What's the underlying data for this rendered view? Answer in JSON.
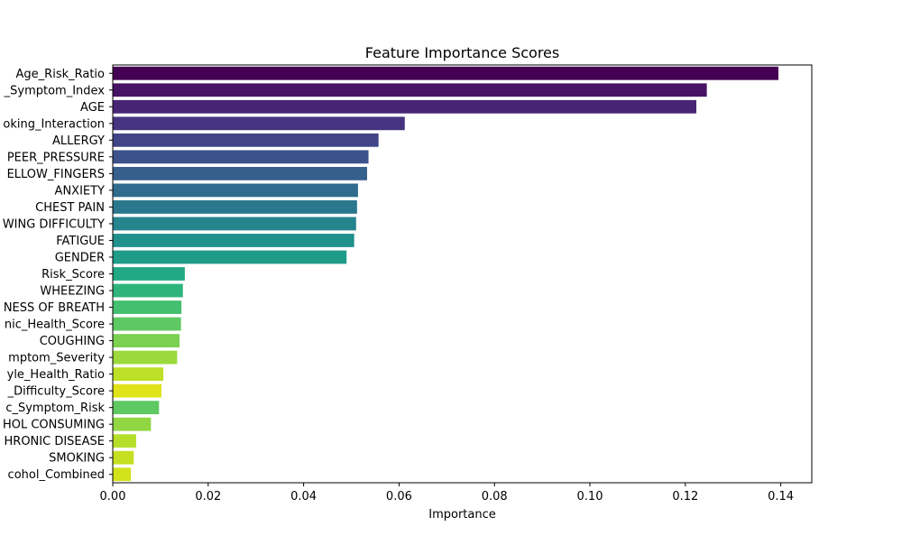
{
  "chart_data": {
    "type": "bar",
    "orientation": "horizontal",
    "title": "Feature Importance Scores",
    "xlabel": "Importance",
    "ylabel": "",
    "xlim": [
      0,
      0.1465
    ],
    "xticks": [
      0.0,
      0.02,
      0.04,
      0.06,
      0.08,
      0.1,
      0.12,
      0.14
    ],
    "xtick_labels": [
      "0.00",
      "0.02",
      "0.04",
      "0.06",
      "0.08",
      "0.10",
      "0.12",
      "0.14"
    ],
    "grid": false,
    "legend": "none",
    "colormap": "viridis",
    "categories": [
      "Age_Risk_Ratio",
      "_Symptom_Index",
      "AGE",
      "oking_Interaction",
      "ALLERGY ",
      "PEER_PRESSURE",
      "ELLOW_FINGERS",
      "ANXIETY",
      "CHEST PAIN",
      "WING DIFFICULTY",
      "FATIGUE ",
      "GENDER",
      "Risk_Score",
      "WHEEZING",
      "NESS OF BREATH",
      "nic_Health_Score",
      "COUGHING",
      "mptom_Severity",
      "yle_Health_Ratio",
      "_Difficulty_Score",
      "c_Symptom_Risk",
      "HOL CONSUMING",
      "HRONIC DISEASE",
      "SMOKING",
      "cohol_Combined"
    ],
    "values": [
      0.1395,
      0.1245,
      0.1223,
      0.0612,
      0.0557,
      0.0536,
      0.0533,
      0.0514,
      0.0512,
      0.051,
      0.0506,
      0.049,
      0.0151,
      0.0147,
      0.0144,
      0.0143,
      0.014,
      0.0135,
      0.0106,
      0.0102,
      0.0097,
      0.008,
      0.0049,
      0.0044,
      0.0038
    ],
    "colors": [
      "#440154",
      "#471365",
      "#482475",
      "#463480",
      "#414487",
      "#3b528b",
      "#355f8d",
      "#2f6c8e",
      "#2a788e",
      "#25848e",
      "#21918c",
      "#1e9c89",
      "#22a884",
      "#2fb47c",
      "#44bf70",
      "#5ec962",
      "#7ad151",
      "#9bd93c",
      "#bddf26",
      "#dfe318",
      "#5ec962",
      "#90d743",
      "#b5de2b",
      "#c5e021",
      "#d2e21b"
    ]
  }
}
